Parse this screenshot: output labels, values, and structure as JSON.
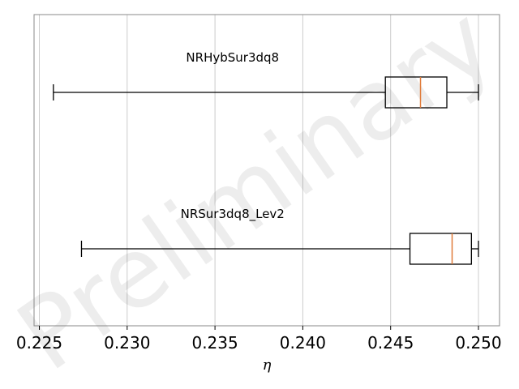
{
  "chart_data": {
    "type": "boxplot",
    "orientation": "horizontal",
    "xlabel": "η",
    "xlim": [
      0.2247,
      0.2512
    ],
    "xticks": [
      0.225,
      0.23,
      0.235,
      0.24,
      0.245,
      0.25
    ],
    "xtick_labels": [
      "0.225",
      "0.230",
      "0.235",
      "0.240",
      "0.245",
      "0.250"
    ],
    "grid": "vertical",
    "series": [
      {
        "name": "NRHybSur3dq8",
        "whisker_low": 0.2258,
        "q1": 0.2447,
        "median": 0.2467,
        "q3": 0.2482,
        "whisker_high": 0.25
      },
      {
        "name": "NRSur3dq8_Lev2",
        "whisker_low": 0.2274,
        "q1": 0.2461,
        "median": 0.2485,
        "q3": 0.2496,
        "whisker_high": 0.25
      }
    ],
    "watermark": "Preliminary",
    "colors": {
      "box": "#000000",
      "median": "#e07b39",
      "grid": "#cccccc",
      "frame": "#888888"
    }
  }
}
